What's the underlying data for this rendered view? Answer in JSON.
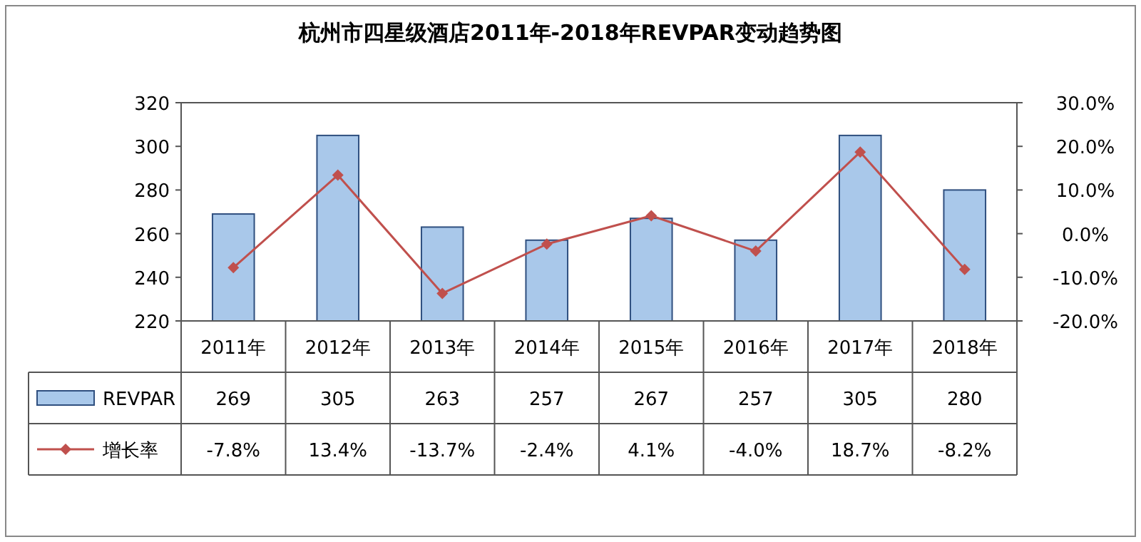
{
  "chart_data": {
    "type": "bar",
    "title": "杭州市四星级酒店2011年-2018年REVPAR变动趋势图",
    "categories": [
      "2011年",
      "2012年",
      "2013年",
      "2014年",
      "2015年",
      "2016年",
      "2017年",
      "2018年"
    ],
    "series": [
      {
        "name": "REVPAR",
        "color": "#a9c8ea",
        "values": [
          269,
          305,
          263,
          257,
          267,
          257,
          305,
          280
        ],
        "value_labels": [
          "269",
          "305",
          "263",
          "257",
          "267",
          "257",
          "305",
          "280"
        ]
      },
      {
        "name": "增长率",
        "type": "line",
        "axis": "y2",
        "color": "#c0504d",
        "values": [
          -7.8,
          13.4,
          -13.7,
          -2.4,
          4.1,
          -4.0,
          18.7,
          -8.2
        ],
        "value_labels": [
          "-7.8%",
          "13.4%",
          "-13.7%",
          "-2.4%",
          "4.1%",
          "-4.0%",
          "18.7%",
          "-8.2%"
        ]
      }
    ],
    "ylim": [
      220,
      320
    ],
    "yticks": [
      220,
      240,
      260,
      280,
      300,
      320
    ],
    "y2lim": [
      -20,
      30
    ],
    "y2ticks": [
      {
        "value": -20,
        "label": "-20.0%"
      },
      {
        "value": -10,
        "label": "-10.0%"
      },
      {
        "value": 0,
        "label": "0.0%"
      },
      {
        "value": 10,
        "label": "10.0%"
      },
      {
        "value": 20,
        "label": "20.0%"
      },
      {
        "value": 30,
        "label": "30.0%"
      }
    ],
    "marker": "diamond",
    "legend": "bottom left",
    "grid": false
  }
}
